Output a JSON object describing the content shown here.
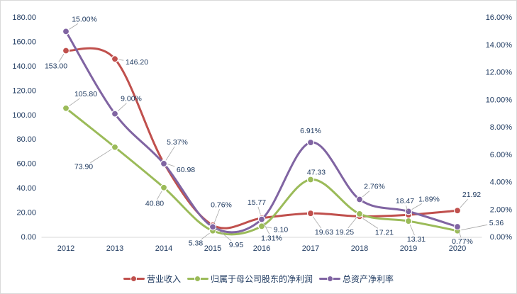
{
  "chart_data": {
    "type": "line",
    "smooth": true,
    "grid": false,
    "legend": "bottom",
    "categories": [
      "2012",
      "2013",
      "2014",
      "2015",
      "2016",
      "2017",
      "2018",
      "2019",
      "2020"
    ],
    "series": [
      {
        "name": "营业收入",
        "axis": "left",
        "color": "#C0504D",
        "values": [
          153.0,
          146.2,
          60.98,
          9.95,
          15.77,
          19.63,
          17.21,
          18.47,
          21.92
        ],
        "data_labels": [
          "153.00",
          "146.20",
          "60.98",
          "9.95",
          "15.77",
          "19.63",
          "17.21",
          "18.47",
          "21.92"
        ]
      },
      {
        "name": "归属于母公司股东的净利润",
        "axis": "left",
        "color": "#9BBB59",
        "values": [
          105.8,
          73.9,
          40.8,
          5.38,
          9.1,
          47.33,
          19.25,
          13.31,
          5.36
        ],
        "data_labels": [
          "105.80",
          "73.90",
          "40.80",
          "5.38",
          "9.10",
          "47.33",
          "19.25",
          "13.31",
          "5.36"
        ]
      },
      {
        "name": "总资产净利率",
        "axis": "right",
        "color": "#8064A2",
        "values": [
          15.0,
          9.0,
          5.37,
          0.76,
          1.31,
          6.91,
          2.76,
          1.89,
          0.77
        ],
        "data_labels": [
          "15.00%",
          "9.00%",
          "5.37%",
          "0.76%",
          "1.31%",
          "6.91%",
          "2.76%",
          "1.89%",
          "0.77%"
        ]
      }
    ],
    "y_left": {
      "range": [
        0,
        180
      ],
      "tick_labels": [
        "0.00",
        "20.00",
        "40.00",
        "60.00",
        "80.00",
        "100.00",
        "120.00",
        "140.00",
        "160.00",
        "180.00"
      ]
    },
    "y_right": {
      "range": [
        0,
        16
      ],
      "tick_labels": [
        "0.00%",
        "2.00%",
        "4.00%",
        "6.00%",
        "8.00%",
        "10.00%",
        "12.00%",
        "14.00%",
        "16.00%"
      ]
    }
  }
}
